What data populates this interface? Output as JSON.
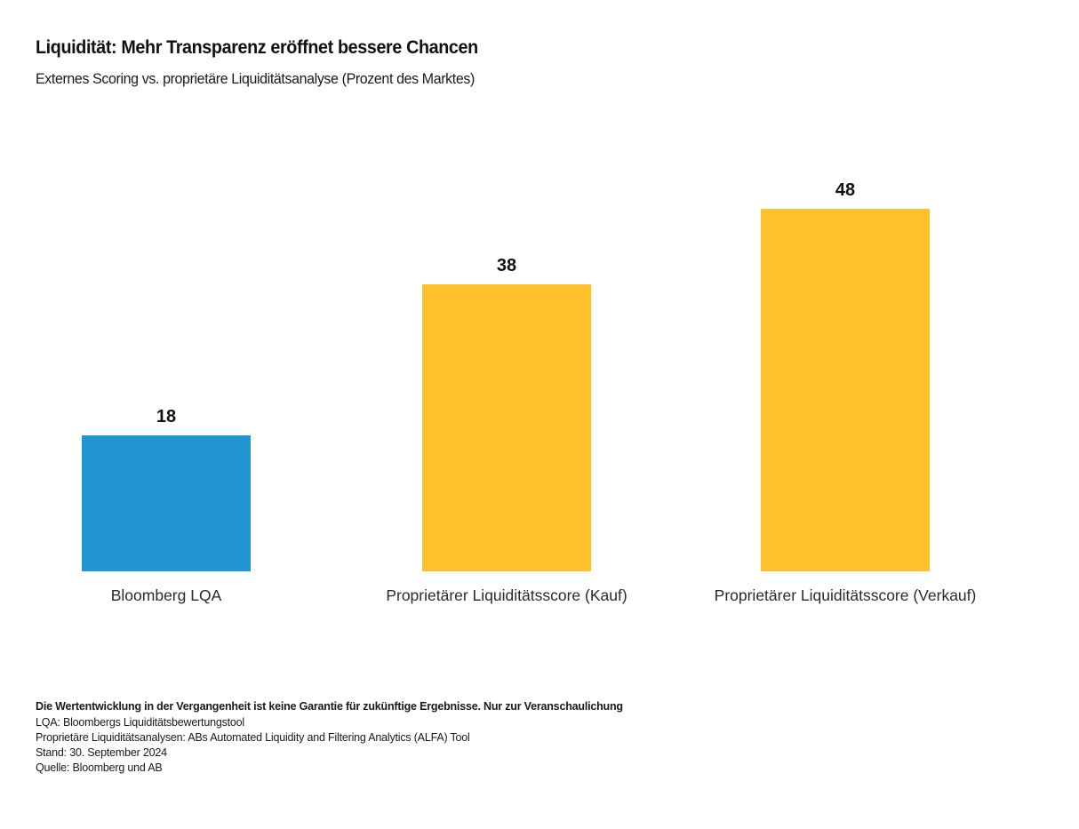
{
  "header": {
    "title": "Liquidität: Mehr Transparenz eröffnet bessere Chancen",
    "subtitle": "Externes Scoring vs. proprietäre Liquiditätsanalyse (Prozent des Marktes)"
  },
  "chart_data": {
    "type": "bar",
    "title": "Liquidität: Mehr Transparenz eröffnet bessere Chancen",
    "subtitle": "Externes Scoring vs. proprietäre Liquiditätsanalyse (Prozent des Marktes)",
    "unit": "Prozent des Marktes",
    "categories": [
      "Bloomberg LQA",
      "Proprietärer Liquiditätsscore (Kauf)",
      "Proprietärer Liquiditätsscore (Verkauf)"
    ],
    "values": [
      18,
      38,
      48
    ],
    "bar_colors": [
      "#2196D1",
      "#FFC12B",
      "#FFC12B"
    ],
    "data_labels": true,
    "grid": false,
    "axes_visible": false,
    "ylim": [
      0,
      50
    ],
    "legend": "none"
  },
  "footnotes": {
    "disclaimer": "Die Wertentwicklung in der Vergangenheit ist keine Garantie für zukünftige Ergebnisse. Nur zur Veranschaulichung",
    "lines": [
      "LQA: Bloombergs Liquiditätsbewertungstool",
      "Proprietäre Liquiditätsanalysen: ABs Automated Liquidity and Filtering Analytics (ALFA) Tool",
      "Stand: 30. September 2024",
      "Quelle: Bloomberg und AB"
    ]
  }
}
